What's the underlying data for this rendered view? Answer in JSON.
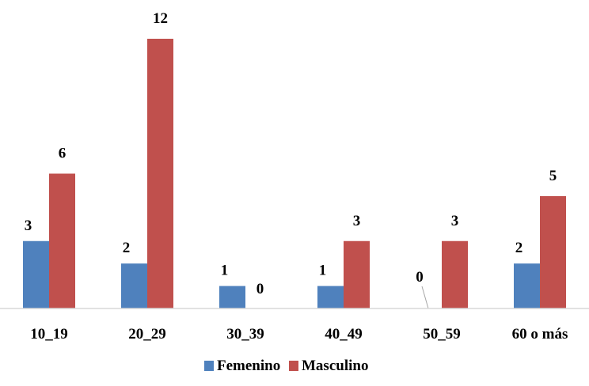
{
  "chart_data": {
    "type": "bar",
    "title": "",
    "xlabel": "",
    "ylabel": "",
    "categories": [
      "10_19",
      "20_29",
      "30_39",
      "40_49",
      "50_59",
      "60 o más"
    ],
    "series": [
      {
        "name": "Femenino",
        "values": [
          3,
          2,
          1,
          1,
          0,
          2
        ],
        "color": "#4f81bd"
      },
      {
        "name": "Masculino",
        "values": [
          6,
          12,
          0,
          3,
          3,
          5
        ],
        "color": "#c0504d"
      }
    ],
    "ylim": [
      0,
      12
    ],
    "grid": false,
    "legend_position": "bottom",
    "axis_color": "#d9d9d9"
  }
}
